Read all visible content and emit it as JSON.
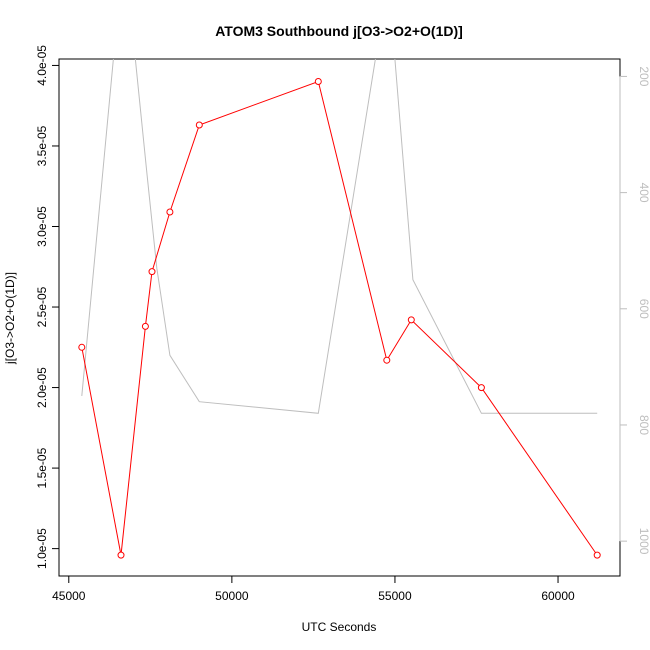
{
  "chart_data": {
    "type": "line",
    "title": "ATOM3 Southbound j[O3->O2+O(1D)]",
    "xlabel": "UTC Seconds",
    "ylabel": "j[O3->O2+O(1D)]",
    "xlim": [
      44700,
      61900
    ],
    "ylim": [
      8.3e-06,
      4.04e-05
    ],
    "xticks": [
      45000,
      50000,
      55000,
      60000
    ],
    "xtick_labels": [
      "45000",
      "50000",
      "55000",
      "60000"
    ],
    "yticks": [
      1e-05,
      1.5e-05,
      2e-05,
      2.5e-05,
      3e-05,
      3.5e-05,
      4e-05
    ],
    "ytick_labels": [
      "1.0e-05",
      "1.5e-05",
      "2.0e-05",
      "2.5e-05",
      "3.0e-05",
      "3.5e-05",
      "4.0e-05"
    ],
    "y2lim": [
      1060,
      170
    ],
    "y2ticks": [
      200,
      400,
      600,
      800,
      1000
    ],
    "y2tick_labels": [
      "200",
      "400",
      "600",
      "800",
      "1000"
    ],
    "grid": false,
    "series": [
      {
        "color": "#ff0000",
        "marker": "open-circle",
        "axis": "left",
        "x": [
          45400,
          46600,
          47350,
          47550,
          48100,
          49000,
          52650,
          54750,
          55500,
          57650,
          61200
        ],
        "y": [
          2.25e-05,
          9.6e-06,
          2.38e-05,
          2.72e-05,
          3.09e-05,
          3.63e-05,
          3.9e-05,
          2.17e-05,
          2.42e-05,
          2e-05,
          9.6e-06
        ]
      },
      {
        "color": "#bebebe",
        "marker": "none",
        "axis": "right",
        "x": [
          45400,
          46450,
          46950,
          47400,
          47700,
          48100,
          49000,
          52650,
          54400,
          54750,
          55000,
          55550,
          57650,
          61200
        ],
        "y": [
          750,
          120,
          120,
          370,
          530,
          680,
          760,
          780,
          170,
          100,
          170,
          550,
          780,
          780
        ]
      }
    ]
  }
}
